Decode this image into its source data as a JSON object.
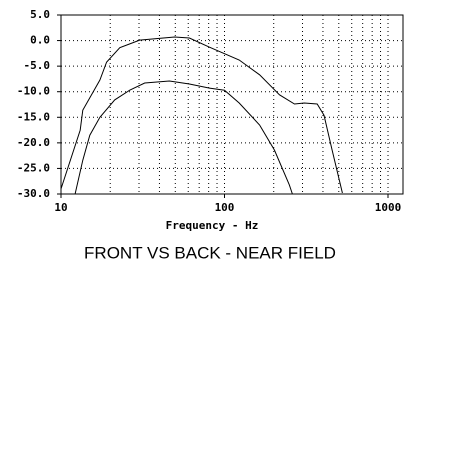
{
  "chart_data": {
    "type": "line",
    "title": "FRONT VS BACK - NEAR FIELD",
    "x_label": "Frequency - Hz",
    "x_log": true,
    "grid": true,
    "xlim": [
      10,
      1235
    ],
    "ylim": [
      -30,
      5
    ],
    "xticks": [
      10,
      100,
      1000
    ],
    "xgrid_minor": [
      20,
      30,
      40,
      50,
      60,
      70,
      80,
      90,
      200,
      300,
      400,
      500,
      600,
      700,
      800,
      900
    ],
    "yticks": [
      {
        "value": 5,
        "label": "5.0"
      },
      {
        "value": 0,
        "label": "0.0"
      },
      {
        "value": -5,
        "label": "-5.0"
      },
      {
        "value": -10,
        "label": "-10.0"
      },
      {
        "value": -15,
        "label": "-15.0"
      },
      {
        "value": -20,
        "label": "-20.0"
      },
      {
        "value": -25,
        "label": "-25.0"
      },
      {
        "value": -30,
        "label": "-30.0"
      }
    ],
    "series": [
      {
        "color": "#000000",
        "x": [
          10,
          13.1,
          13.6,
          17.3,
          19,
          22.9,
          30.3,
          49.5,
          61,
          81,
          123,
          164,
          217,
          268,
          307,
          369,
          406,
          455,
          526
        ],
        "values": [
          -29,
          -17.5,
          -13.6,
          -7.7,
          -4.2,
          -1.4,
          0.1,
          0.7,
          0.5,
          -1.3,
          -3.8,
          -6.7,
          -10.6,
          -12.4,
          -12.2,
          -12.4,
          -14.6,
          -21.4,
          -29.8
        ]
      },
      {
        "color": "#000000",
        "x": [
          12.2,
          13.6,
          15,
          17.3,
          21.3,
          26.3,
          32.5,
          46,
          61,
          81,
          100,
          123,
          164,
          202,
          249,
          260
        ],
        "values": [
          -30,
          -23.4,
          -18.5,
          -15,
          -11.6,
          -9.7,
          -8.3,
          -7.9,
          -8.5,
          -9.3,
          -9.7,
          -12.2,
          -16.5,
          -21.4,
          -28.2,
          -30
        ]
      }
    ]
  }
}
